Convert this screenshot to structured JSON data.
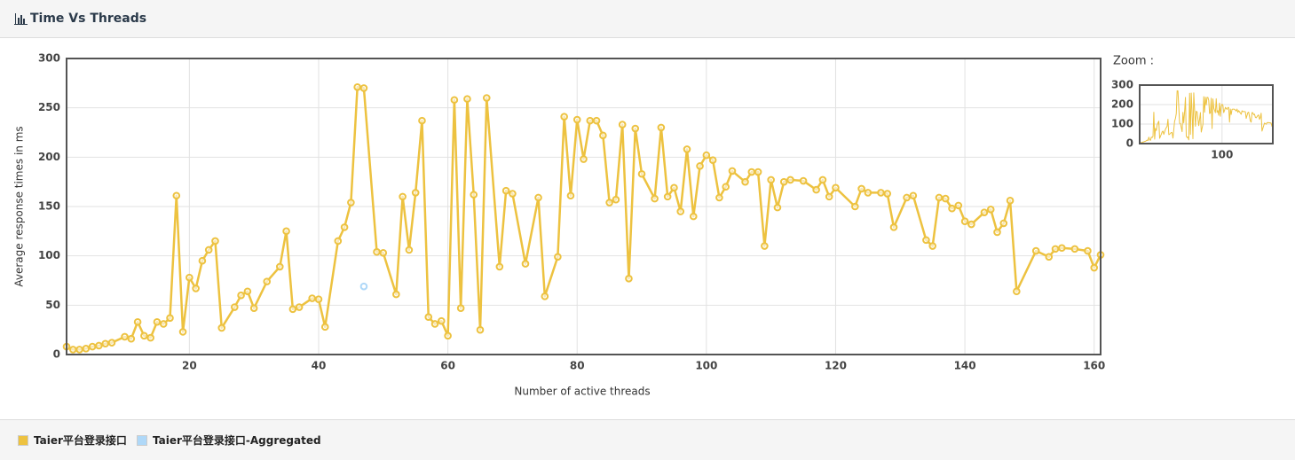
{
  "header": {
    "title": "Time Vs Threads"
  },
  "chart_data": {
    "type": "line",
    "xlabel": "Number of active threads",
    "ylabel": "Average response times in ms",
    "xlim": [
      1,
      161
    ],
    "ylim": [
      0,
      300
    ],
    "xticks": [
      20,
      40,
      60,
      80,
      100,
      120,
      140,
      160
    ],
    "yticks": [
      0,
      50,
      100,
      150,
      200,
      250,
      300
    ],
    "grid": true,
    "series": [
      {
        "name": "Taier平台登录接口",
        "color": "#edc240",
        "x": [
          1,
          2,
          3,
          4,
          5,
          6,
          7,
          8,
          10,
          11,
          12,
          13,
          14,
          15,
          16,
          17,
          18,
          19,
          20,
          21,
          22,
          23,
          24,
          25,
          27,
          28,
          29,
          30,
          32,
          34,
          35,
          36,
          37,
          39,
          40,
          41,
          43,
          44,
          45,
          46,
          47,
          49,
          50,
          52,
          53,
          54,
          55,
          56,
          57,
          58,
          59,
          60,
          61,
          62,
          63,
          64,
          65,
          66,
          68,
          69,
          70,
          72,
          74,
          75,
          77,
          78,
          79,
          80,
          81,
          82,
          83,
          84,
          85,
          86,
          87,
          88,
          89,
          90,
          92,
          93,
          94,
          95,
          96,
          97,
          98,
          99,
          100,
          101,
          102,
          103,
          104,
          106,
          107,
          108,
          109,
          110,
          111,
          112,
          113,
          115,
          117,
          118,
          119,
          120,
          123,
          124,
          125,
          127,
          128,
          129,
          131,
          132,
          134,
          135,
          136,
          137,
          138,
          139,
          140,
          141,
          143,
          144,
          145,
          146,
          147,
          148,
          151,
          153,
          154,
          155,
          157,
          159,
          160,
          161
        ],
        "values": [
          8,
          5,
          5,
          6,
          8,
          9,
          11,
          12,
          18,
          16,
          33,
          19,
          17,
          33,
          31,
          37,
          161,
          23,
          78,
          67,
          95,
          106,
          115,
          27,
          48,
          60,
          64,
          47,
          74,
          89,
          125,
          46,
          48,
          57,
          56,
          28,
          115,
          129,
          154,
          271,
          270,
          104,
          103,
          61,
          160,
          106,
          164,
          237,
          38,
          31,
          34,
          19,
          258,
          47,
          259,
          162,
          25,
          260,
          89,
          166,
          163,
          92,
          159,
          59,
          99,
          241,
          161,
          238,
          198,
          237,
          237,
          222,
          154,
          157,
          233,
          77,
          229,
          183,
          158,
          230,
          160,
          169,
          145,
          208,
          140,
          191,
          202,
          197,
          159,
          170,
          186,
          175,
          185,
          185,
          110,
          177,
          149,
          175,
          177,
          176,
          167,
          177,
          160,
          169,
          150,
          168,
          164,
          164,
          163,
          129,
          159,
          161,
          116,
          110,
          159,
          158,
          148,
          151,
          135,
          132,
          144,
          147,
          124,
          133,
          156,
          64,
          105,
          99,
          107,
          108,
          107,
          105,
          88,
          101
        ]
      },
      {
        "name": "Taier平台登录接口-Aggregated",
        "color": "#afd8f8",
        "x": [
          47
        ],
        "values": [
          69
        ]
      }
    ],
    "zoom": {
      "label": "Zoom :",
      "yticks": [
        0,
        100,
        200,
        300
      ],
      "xticks": [
        100
      ]
    }
  }
}
